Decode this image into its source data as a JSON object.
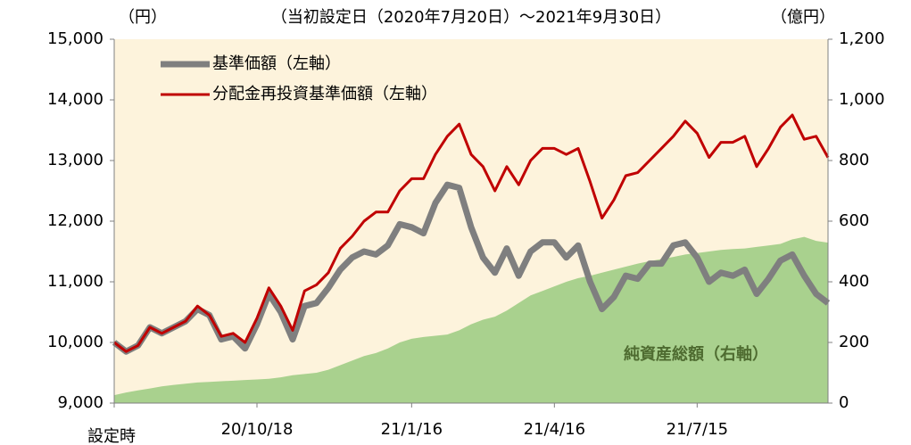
{
  "chart_data": {
    "type": "line",
    "title": "（当初設定日（2020年7月20日）～2021年9月30日）",
    "y_unit": "（円）",
    "y2_unit": "（億円）",
    "annotation": "純資産総額（右軸）",
    "categories": [
      "設定時",
      null,
      null,
      null,
      null,
      null,
      null,
      null,
      null,
      null,
      null,
      null,
      "20/10/18",
      null,
      null,
      null,
      null,
      null,
      null,
      null,
      null,
      null,
      null,
      null,
      null,
      "21/1/16",
      null,
      null,
      null,
      null,
      null,
      null,
      null,
      null,
      null,
      null,
      null,
      "21/4/16",
      null,
      null,
      null,
      null,
      null,
      null,
      null,
      null,
      null,
      null,
      null,
      "21/7/15",
      null,
      null,
      null,
      null,
      null,
      null,
      null,
      null,
      null,
      null,
      null
    ],
    "series": [
      {
        "name": "純資産総額（右軸）",
        "type": "area",
        "axis": "y2",
        "color": "#a9d18e",
        "values": [
          26,
          35,
          42,
          48,
          55,
          60,
          64,
          68,
          70,
          72,
          74,
          76,
          78,
          80,
          85,
          92,
          96,
          100,
          110,
          125,
          140,
          155,
          165,
          180,
          200,
          212,
          218,
          222,
          226,
          240,
          260,
          275,
          285,
          305,
          330,
          355,
          370,
          385,
          400,
          412,
          420,
          430,
          440,
          450,
          460,
          468,
          475,
          482,
          490,
          495,
          500,
          505,
          508,
          510,
          515,
          520,
          525,
          540,
          548,
          535,
          529
        ]
      },
      {
        "name": "基準価額（左軸）",
        "type": "line",
        "axis": "y",
        "color": "#7f7f7f",
        "values": [
          10000,
          9850,
          9950,
          10250,
          10150,
          10250,
          10350,
          10550,
          10450,
          10050,
          10100,
          9900,
          10300,
          10800,
          10500,
          10050,
          10600,
          10650,
          10900,
          11200,
          11400,
          11500,
          11450,
          11600,
          11950,
          11900,
          11800,
          12300,
          12600,
          12550,
          11900,
          11400,
          11150,
          11550,
          11100,
          11500,
          11650,
          11650,
          11400,
          11600,
          11000,
          10550,
          10750,
          11100,
          11050,
          11300,
          11300,
          11600,
          11650,
          11400,
          11000,
          11150,
          11100,
          11200,
          10800,
          11050,
          11350,
          11450,
          11100,
          10800,
          10650
        ]
      },
      {
        "name": "分配金再投資基準価額（左軸）",
        "type": "line",
        "axis": "y",
        "color": "#c00000",
        "values": [
          10000,
          9850,
          9950,
          10250,
          10150,
          10250,
          10350,
          10600,
          10450,
          10100,
          10150,
          10000,
          10400,
          10900,
          10600,
          10200,
          10850,
          10950,
          11150,
          11550,
          11750,
          12000,
          12150,
          12150,
          12500,
          12700,
          12700,
          13100,
          13400,
          13600,
          13100,
          12900,
          12500,
          12900,
          12600,
          13000,
          13200,
          13200,
          13100,
          13200,
          12650,
          12050,
          12350,
          12750,
          12800,
          13000,
          13200,
          13400,
          13650,
          13450,
          13050,
          13300,
          13300,
          13400,
          12900,
          13200,
          13550,
          13750,
          13350,
          13400,
          13050
        ]
      }
    ],
    "ylim": [
      9000,
      15000
    ],
    "yticks": [
      {
        "value": 9000,
        "label": "9,000"
      },
      {
        "value": 10000,
        "label": "10,000"
      },
      {
        "value": 11000,
        "label": "11,000"
      },
      {
        "value": 12000,
        "label": "12,000"
      },
      {
        "value": 13000,
        "label": "13,000"
      },
      {
        "value": 14000,
        "label": "14,000"
      },
      {
        "value": 15000,
        "label": "15,000"
      }
    ],
    "y2lim": [
      0,
      1200
    ],
    "y2ticks": [
      0,
      200,
      400,
      600,
      800,
      {
        "value": 1000,
        "label": "1,000"
      },
      {
        "value": 1200,
        "label": "1,200"
      }
    ],
    "background": "#fdf3dc"
  }
}
